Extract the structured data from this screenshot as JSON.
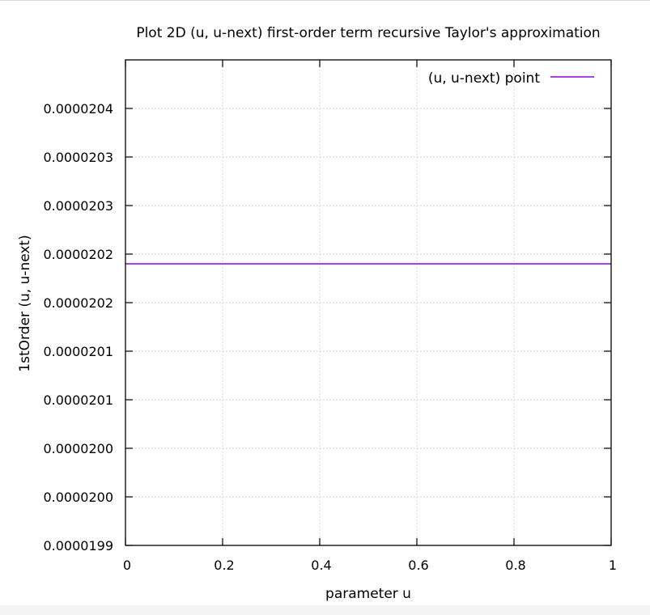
{
  "chart_data": {
    "type": "line",
    "title": "Plot 2D (u, u-next) first-order term recursive Taylor's approximation",
    "xlabel": "parameter u",
    "ylabel": "1stOrder (u, u-next)",
    "xlim": [
      0,
      1
    ],
    "ylim": [
      1.99e-05,
      2.04e-05
    ],
    "x_ticks": [
      {
        "value": 0,
        "label": "0"
      },
      {
        "value": 0.2,
        "label": "0.2"
      },
      {
        "value": 0.4,
        "label": "0.4"
      },
      {
        "value": 0.6,
        "label": "0.6"
      },
      {
        "value": 0.8,
        "label": "0.8"
      },
      {
        "value": 1,
        "label": "1"
      }
    ],
    "y_ticks": [
      {
        "value": 1.99e-05,
        "label": "0.0000199"
      },
      {
        "value": 1.995e-05,
        "label": "0.0000200"
      },
      {
        "value": 2e-05,
        "label": "0.0000200"
      },
      {
        "value": 2.005e-05,
        "label": "0.0000201"
      },
      {
        "value": 2.01e-05,
        "label": "0.0000201"
      },
      {
        "value": 2.015e-05,
        "label": "0.0000202"
      },
      {
        "value": 2.02e-05,
        "label": "0.0000202"
      },
      {
        "value": 2.025e-05,
        "label": "0.0000203"
      },
      {
        "value": 2.03e-05,
        "label": "0.0000203"
      },
      {
        "value": 2.035e-05,
        "label": "0.0000204"
      }
    ],
    "grid": true,
    "legend_position": "top-right",
    "series": [
      {
        "name": "(u, u-next) point",
        "color": "#9400d3",
        "x": [
          0,
          1
        ],
        "y": [
          2.019e-05,
          2.019e-05
        ]
      }
    ]
  }
}
